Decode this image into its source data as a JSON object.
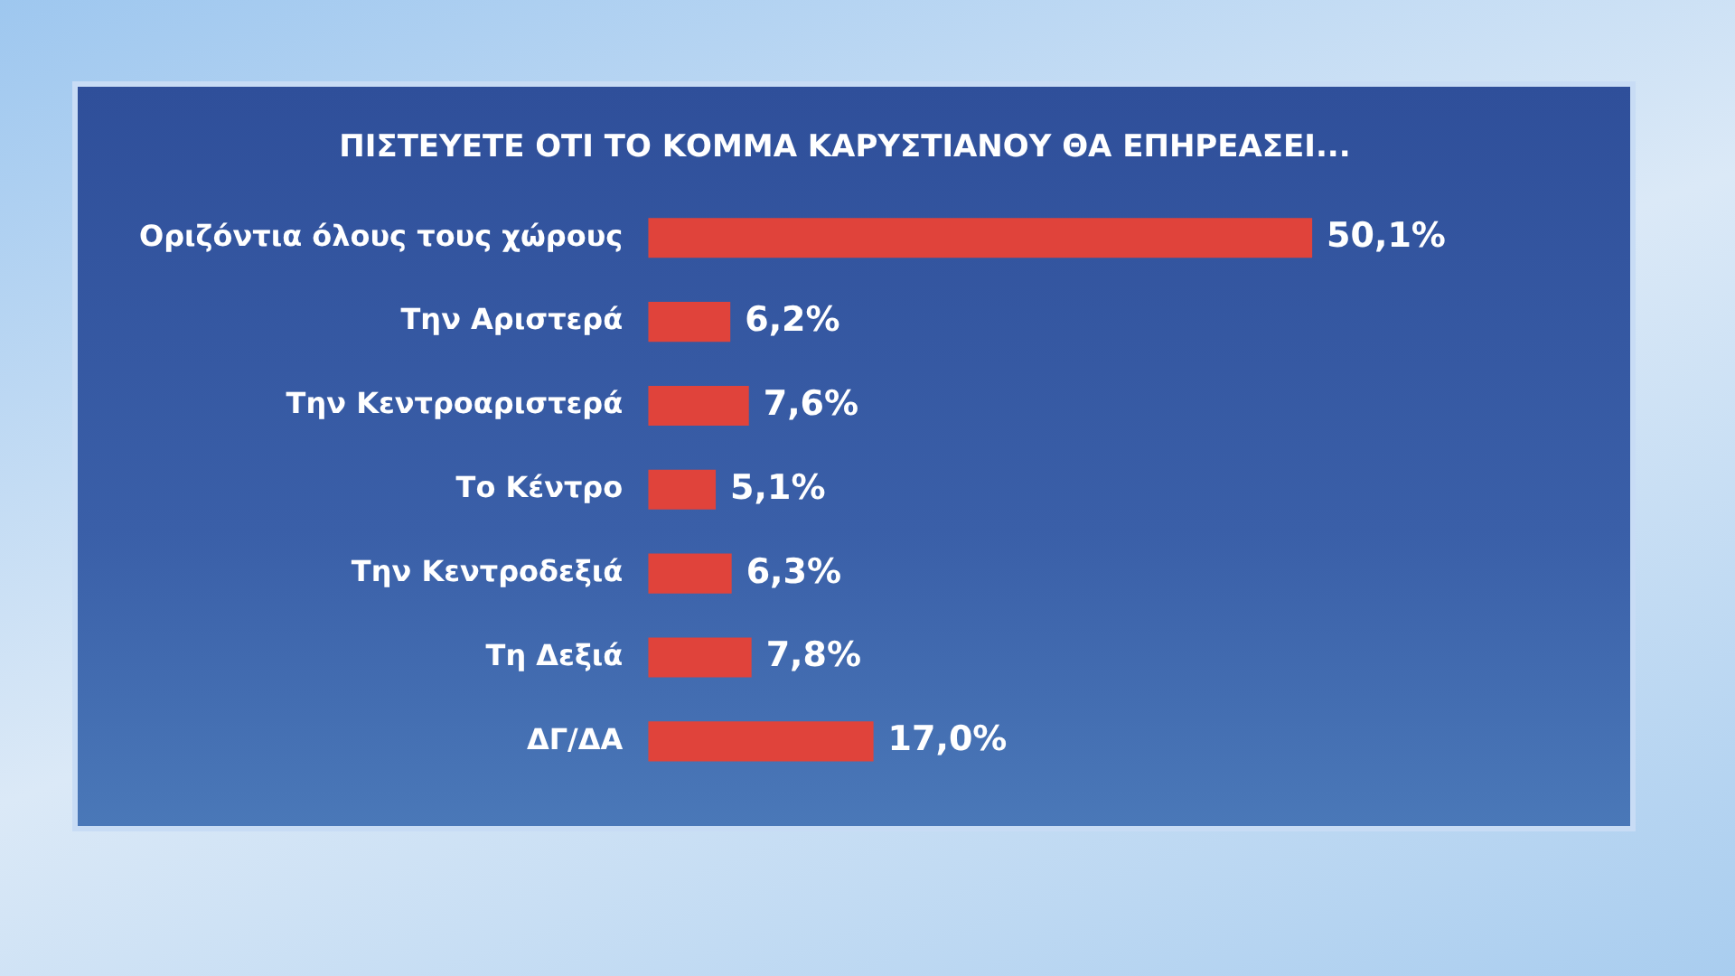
{
  "chart_data": {
    "type": "bar",
    "orientation": "horizontal",
    "title": "ΠΙΣΤΕΥΕΤΕ ΟΤΙ ΤΟ ΚΟΜΜΑ ΚΑΡΥΣΤΙΑΝΟΥ ΘΑ ΕΠΗΡΕΑΣΕΙ...",
    "categories": [
      "Οριζόντια όλους τους χώρους",
      "Την Αριστερά",
      "Την Κεντροαριστερά",
      "Το Κέντρο",
      "Την Κεντροδεξιά",
      "Τη Δεξιά",
      "ΔΓ/ΔΑ"
    ],
    "values": [
      50.1,
      6.2,
      7.6,
      5.1,
      6.3,
      7.8,
      17.0
    ],
    "value_labels": [
      "50,1%",
      "6,2%",
      "7,6%",
      "5,1%",
      "6,3%",
      "7,8%",
      "17,0%"
    ],
    "color": "#e0433b",
    "grid": false,
    "legend": false,
    "tick_labels": "y"
  }
}
